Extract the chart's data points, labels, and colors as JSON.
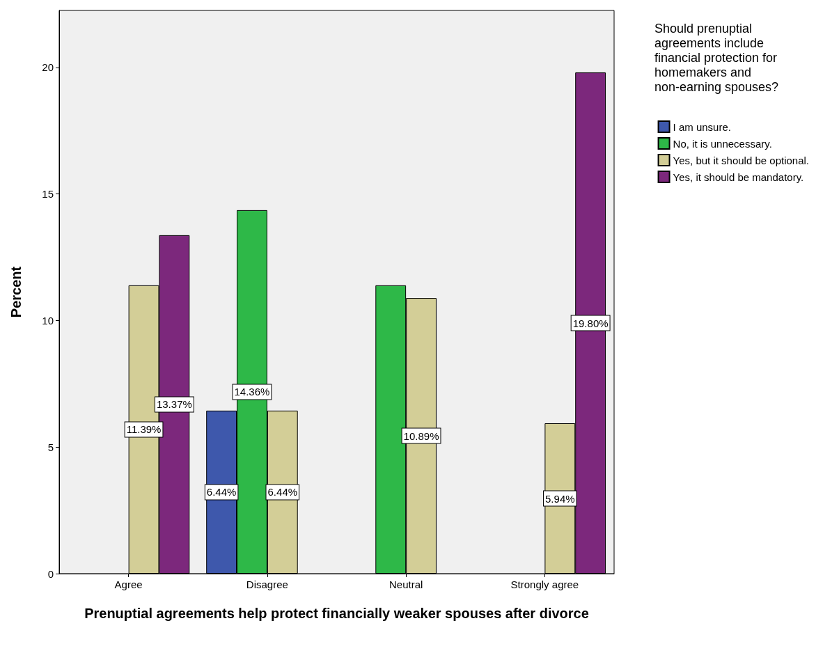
{
  "chart_data": {
    "type": "bar",
    "xlabel": "Prenuptial agreements help protect financially weaker spouses after divorce",
    "ylabel": "Percent",
    "legend_title": "Should prenuptial agreements include financial protection for homemakers and non-earning spouses?",
    "categories": [
      "Agree",
      "Disagree",
      "Neutral",
      "Strongly agree"
    ],
    "series": [
      {
        "name": "I am unsure.",
        "color": "#3e58ac",
        "values": [
          null,
          6.44,
          null,
          null
        ],
        "value_labels": [
          null,
          "6.44%",
          null,
          null
        ]
      },
      {
        "name": "No, it is unnecessary.",
        "color": "#2eb848",
        "values": [
          null,
          14.36,
          11.39,
          null
        ],
        "value_labels": [
          null,
          "14.36%",
          null,
          null
        ]
      },
      {
        "name": "Yes, but it should be optional.",
        "color": "#d3ce97",
        "values": [
          11.39,
          6.44,
          10.89,
          5.94
        ],
        "value_labels": [
          "11.39%",
          "6.44%",
          "10.89%",
          "5.94%"
        ]
      },
      {
        "name": "Yes, it should be mandatory.",
        "color": "#7c287c",
        "values": [
          13.37,
          null,
          null,
          19.8
        ],
        "value_labels": [
          "13.37%",
          null,
          null,
          "19.80%"
        ]
      }
    ],
    "ylim": [
      0,
      22.25
    ],
    "yticks": [
      0,
      5,
      10,
      15,
      20
    ],
    "grid": false,
    "legend": "right"
  }
}
